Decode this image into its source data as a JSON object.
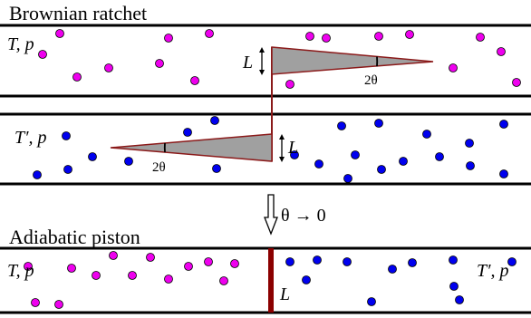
{
  "titles": {
    "ratchet": "Brownian ratchet",
    "piston": "Adiabatic piston"
  },
  "labels": {
    "top_state": "T, p",
    "middle_state": "T′, p",
    "bottom_left_state": "T, p",
    "bottom_right_state": "T′, p",
    "length_top": "L",
    "length_mid": "L",
    "length_piston": "L",
    "angle_top": "2θ",
    "angle_mid": "2θ",
    "limit": "θ → 0"
  },
  "colors": {
    "hot_particle": "#ee00ee",
    "cold_particle": "#0000ee",
    "ratchet_outline": "#8b1a1a",
    "vane_fill": "#a0a0a0",
    "piston": "#8b0000",
    "wall": "#000000"
  }
}
